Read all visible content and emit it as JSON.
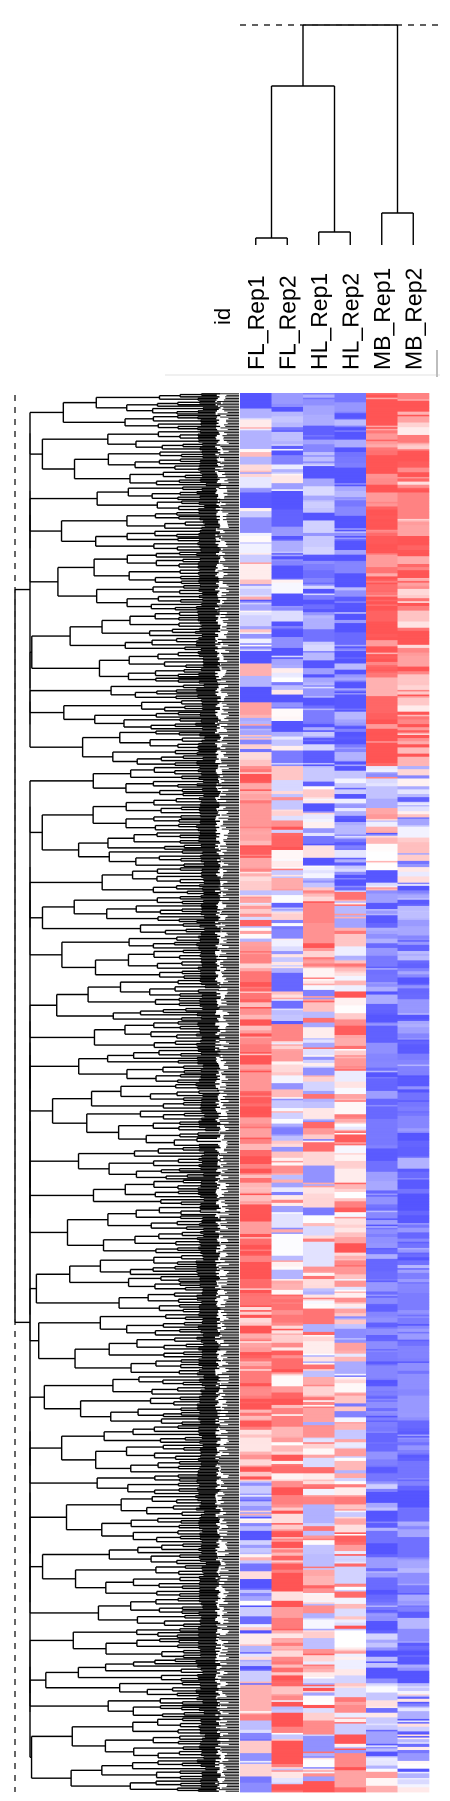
{
  "chart_data": {
    "type": "heatmap",
    "title": "",
    "row_label_header": "id",
    "columns": [
      "FL_Rep1",
      "FL_Rep2",
      "HL_Rep1",
      "HL_Rep2",
      "MB_Rep1",
      "MB_Rep2"
    ],
    "column_dendrogram": {
      "clusters": [
        [
          "FL_Rep1",
          "FL_Rep2"
        ],
        [
          "HL_Rep1",
          "HL_Rep2"
        ],
        [
          "MB_Rep1",
          "MB_Rep2"
        ]
      ],
      "order": "((FL_Rep1,FL_Rep2),(HL_Rep1,HL_Rep2)),(MB_Rep1,MB_Rep2)"
    },
    "row_count": 900,
    "color_scale": {
      "low": "#5555ff",
      "mid": "#ffffff",
      "high": "#ff5555"
    },
    "value_range": [
      -1.5,
      1.5
    ],
    "row_blocks": [
      {
        "rows": 240,
        "values": [
          -0.4,
          -0.9,
          -1.1,
          -1.2,
          1.3,
          1.1
        ],
        "jitter": [
          0.8,
          0.7,
          0.5,
          0.4,
          0.4,
          0.6
        ]
      },
      {
        "rows": 80,
        "values": [
          1.0,
          0.5,
          -0.6,
          -0.9,
          -0.2,
          -0.4
        ],
        "jitter": [
          0.5,
          0.7,
          0.7,
          0.5,
          0.8,
          0.7
        ]
      },
      {
        "rows": 50,
        "values": [
          0.3,
          -0.5,
          1.1,
          0.2,
          -1.0,
          -1.0
        ],
        "jitter": [
          0.7,
          0.6,
          0.5,
          0.7,
          0.3,
          0.3
        ]
      },
      {
        "rows": 200,
        "values": [
          1.1,
          -0.2,
          0.1,
          0.7,
          -1.1,
          -1.1
        ],
        "jitter": [
          0.4,
          0.8,
          0.8,
          0.6,
          0.3,
          0.3
        ]
      },
      {
        "rows": 130,
        "values": [
          1.0,
          0.8,
          0.3,
          -0.1,
          -1.2,
          -1.2
        ],
        "jitter": [
          0.5,
          0.5,
          0.7,
          0.7,
          0.2,
          0.2
        ]
      },
      {
        "rows": 130,
        "values": [
          -0.5,
          1.0,
          0.3,
          0.5,
          -1.0,
          -1.1
        ],
        "jitter": [
          0.8,
          0.5,
          0.7,
          0.7,
          0.4,
          0.3
        ]
      },
      {
        "rows": 70,
        "values": [
          0.0,
          0.6,
          0.4,
          0.5,
          -0.4,
          -0.6
        ],
        "jitter": [
          0.9,
          0.8,
          0.9,
          0.9,
          0.8,
          0.7
        ]
      }
    ]
  }
}
